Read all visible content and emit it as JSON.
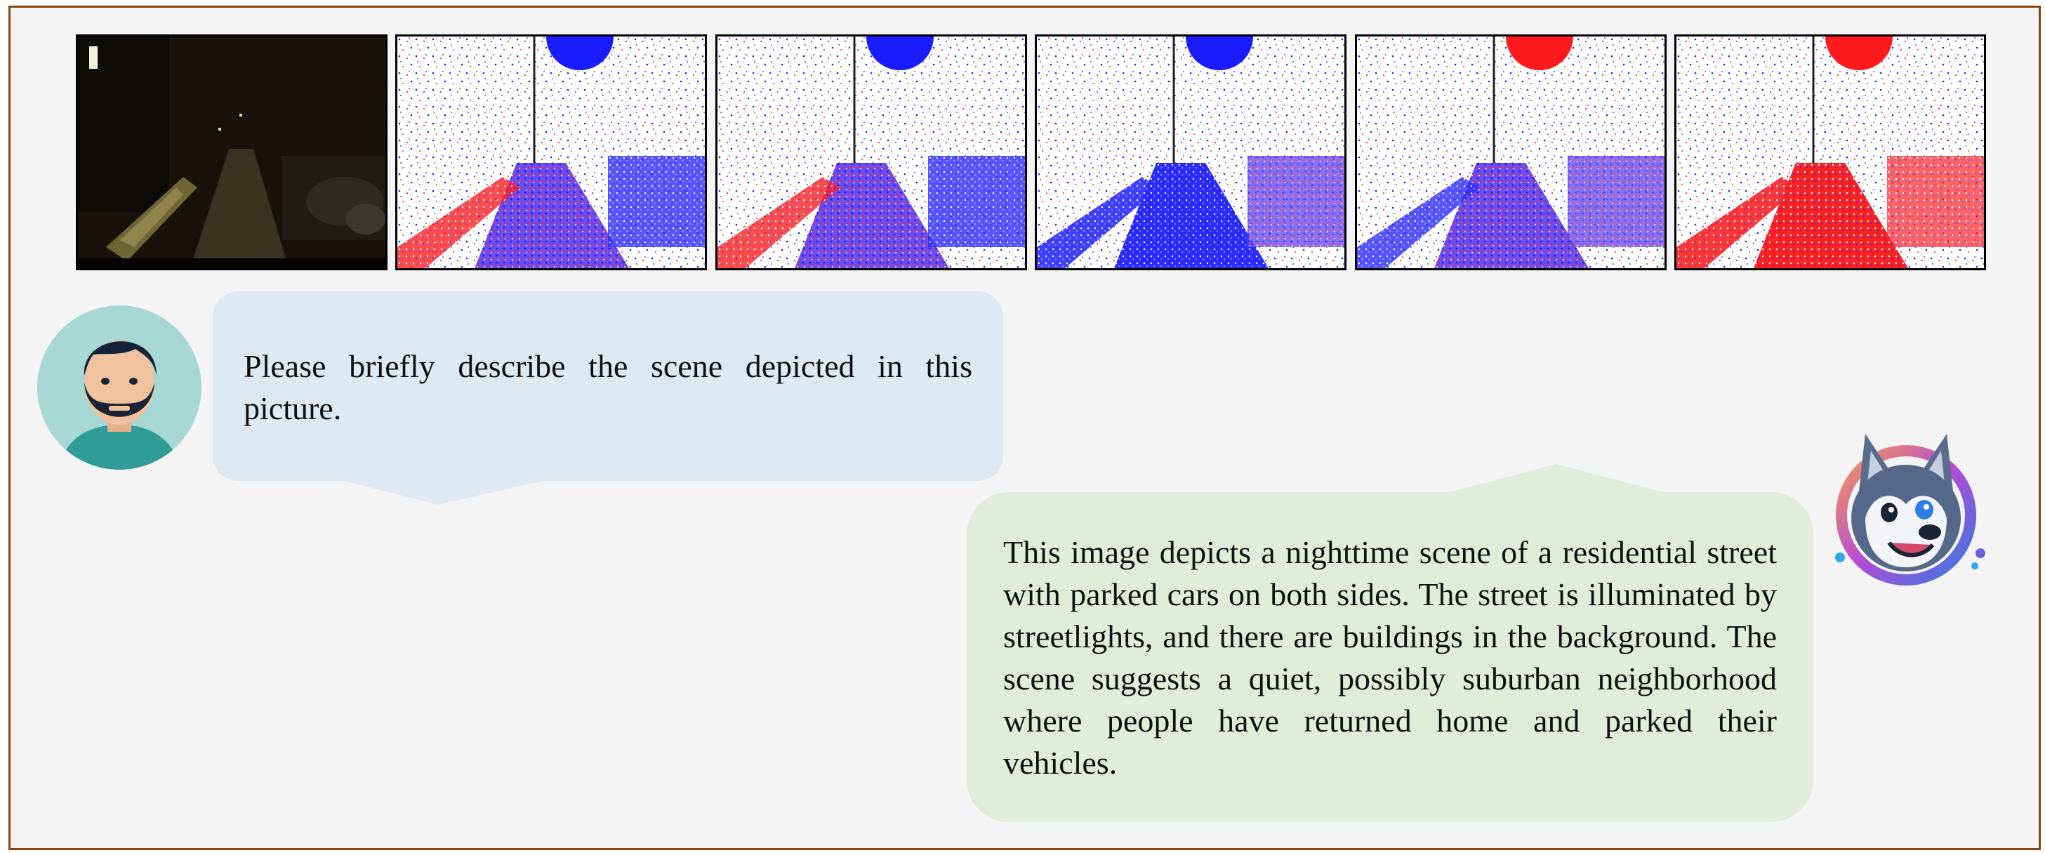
{
  "panels": {
    "count": 6,
    "items": [
      {
        "kind": "photo",
        "icon": "night-street-photo"
      },
      {
        "kind": "event-map",
        "icon": "event-map-blue-sun",
        "colors": {
          "sun": "#1b1bff",
          "bg": "#ffffff"
        }
      },
      {
        "kind": "event-map",
        "icon": "event-map-blue-sun",
        "colors": {
          "sun": "#1b1bff",
          "bg": "#ffffff"
        }
      },
      {
        "kind": "event-map",
        "icon": "event-map-blue-sun",
        "colors": {
          "sun": "#1b1bff",
          "bg": "#ffffff"
        }
      },
      {
        "kind": "event-map",
        "icon": "event-map-red-sun",
        "colors": {
          "sun": "#ff1b1b",
          "bg": "#ffffff"
        }
      },
      {
        "kind": "event-map",
        "icon": "event-map-red-sun",
        "colors": {
          "sun": "#ff1b1b",
          "bg": "#ffffff"
        }
      }
    ]
  },
  "conversation": {
    "user": {
      "avatar": "bearded-man-avatar-icon",
      "message": "Please briefly describe the scene depicted in this picture."
    },
    "assistant": {
      "avatar": "husky-mascot-icon",
      "message": "This image depicts a nighttime scene of a residential street with parked cars on both sides. The street is illuminated by streetlights, and there are buildings in the background. The scene suggests a quiet, possibly suburban neighborhood where people have returned home and parked their vehicles."
    }
  },
  "colors": {
    "frame_border": "#8b4513",
    "user_bubble": "#dde9f3",
    "assistant_bubble": "#e2edd9",
    "canvas": "#f4f4f4"
  }
}
